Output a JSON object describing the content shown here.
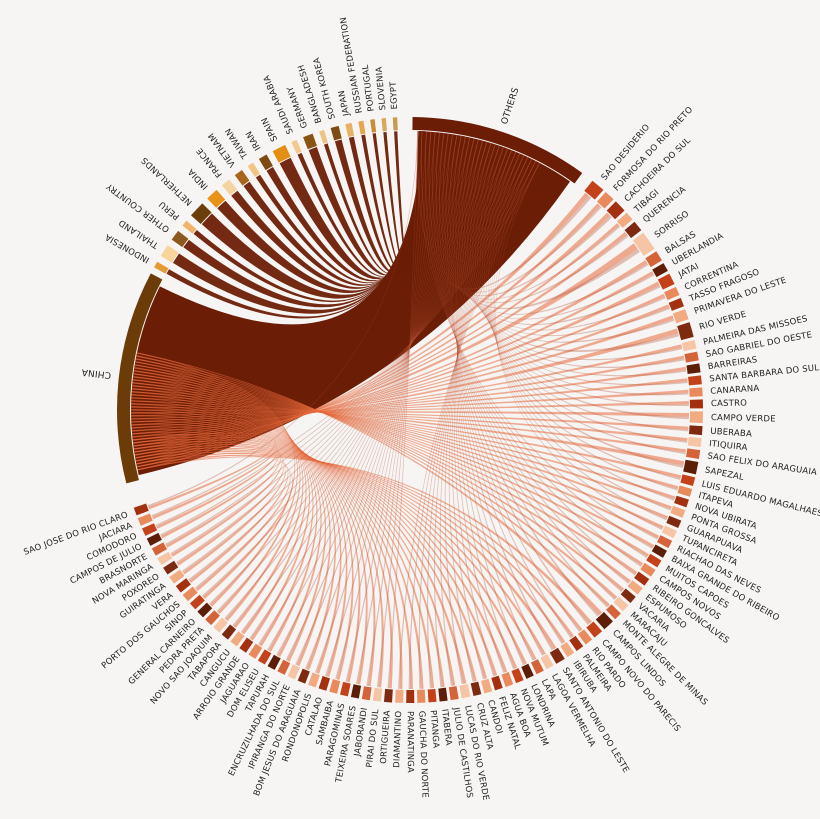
{
  "chart_data": {
    "type": "chord",
    "title": "",
    "countries": [
      {
        "name": "EGYPT",
        "weight": 0.7,
        "color": "#c89a52"
      },
      {
        "name": "SLOVENIA",
        "weight": 0.7,
        "color": "#d9a85f"
      },
      {
        "name": "PORTUGAL",
        "weight": 0.7,
        "color": "#c78c37"
      },
      {
        "name": "RUSSIAN FEDERATION",
        "weight": 0.8,
        "color": "#e7a54c"
      },
      {
        "name": "JAPAN",
        "weight": 1.0,
        "color": "#e8b062"
      },
      {
        "name": "SOUTH KOREA",
        "weight": 1.3,
        "color": "#7e4c12"
      },
      {
        "name": "BANGLADESH",
        "weight": 0.8,
        "color": "#f0c283"
      },
      {
        "name": "GERMANY",
        "weight": 1.6,
        "color": "#8a5314"
      },
      {
        "name": "SAUDI ARABIA",
        "weight": 0.9,
        "color": "#f4c98e"
      },
      {
        "name": "SPAIN",
        "weight": 2.2,
        "color": "#e58e14"
      },
      {
        "name": "IRAN",
        "weight": 1.4,
        "color": "#7d4a10"
      },
      {
        "name": "TAIWAN",
        "weight": 1.0,
        "color": "#f2c585"
      },
      {
        "name": "VIETNAM",
        "weight": 1.4,
        "color": "#a9661a"
      },
      {
        "name": "FRANCE",
        "weight": 1.5,
        "color": "#f6d4a2"
      },
      {
        "name": "INDIA",
        "weight": 2.0,
        "color": "#e89217"
      },
      {
        "name": "NETHERLANDS",
        "weight": 2.6,
        "color": "#6b3e0a"
      },
      {
        "name": "PERU",
        "weight": 1.0,
        "color": "#f0b56a"
      },
      {
        "name": "OTHER COUNTRY",
        "weight": 1.7,
        "color": "#8c5a1d"
      },
      {
        "name": "THAILAND",
        "weight": 2.0,
        "color": "#f8d39a"
      },
      {
        "name": "INDONESIA",
        "weight": 1.0,
        "color": "#e59a34"
      },
      {
        "name": "CHINA",
        "weight": 34.0,
        "color": "#6b3c08"
      }
    ],
    "others": {
      "name": "OTHERS",
      "weight": 47.0,
      "color": "#6b1d05"
    },
    "municipalities": [
      {
        "name": "SAO DESIDERIO",
        "weight": 1.6
      },
      {
        "name": "FORMOSA DO RIO PRETO",
        "weight": 1.2
      },
      {
        "name": "CACHOEIRA DO SUL",
        "weight": 1.4
      },
      {
        "name": "TIBAGI",
        "weight": 1.0
      },
      {
        "name": "QUERENCIA",
        "weight": 1.2
      },
      {
        "name": "SORRISO",
        "weight": 2.2
      },
      {
        "name": "BALSAS",
        "weight": 1.2
      },
      {
        "name": "UBERLANDIA",
        "weight": 1.0
      },
      {
        "name": "JATAI",
        "weight": 1.3
      },
      {
        "name": "CORRENTINA",
        "weight": 1.0
      },
      {
        "name": "TASSO FRAGOSO",
        "weight": 1.0
      },
      {
        "name": "PRIMAVERA DO LESTE",
        "weight": 1.2
      },
      {
        "name": "RIO VERDE",
        "weight": 1.7
      },
      {
        "name": "PALMEIRA DAS MISSOES",
        "weight": 1.0
      },
      {
        "name": "SAO GABRIEL DO OESTE",
        "weight": 1.0
      },
      {
        "name": "BARREIRAS",
        "weight": 1.0
      },
      {
        "name": "SANTA BARBARA DO SUL",
        "weight": 1.0
      },
      {
        "name": "CANARANA",
        "weight": 1.0
      },
      {
        "name": "CASTRO",
        "weight": 1.0
      },
      {
        "name": "CAMPO VERDE",
        "weight": 1.3
      },
      {
        "name": "UBERABA",
        "weight": 1.0
      },
      {
        "name": "ITIQUIRA",
        "weight": 1.0
      },
      {
        "name": "SAO FELIX DO ARAGUAIA",
        "weight": 1.0
      },
      {
        "name": "SAPEZAL",
        "weight": 1.4
      },
      {
        "name": "LUIS EDUARDO MAGALHAES",
        "weight": 1.0
      },
      {
        "name": "ITAPEVA",
        "weight": 0.9
      },
      {
        "name": "NOVA UBIRATA",
        "weight": 0.9
      },
      {
        "name": "PONTA GROSSA",
        "weight": 0.9
      },
      {
        "name": "GUARAPUAVA",
        "weight": 0.9
      },
      {
        "name": "TUPANCIRETA",
        "weight": 0.9
      },
      {
        "name": "RIACHAO DAS NEVES",
        "weight": 0.9
      },
      {
        "name": "BAIXA GRANDE DO RIBEIRO",
        "weight": 0.9
      },
      {
        "name": "MUITOS CAPOES",
        "weight": 0.9
      },
      {
        "name": "CAMPOS NOVOS",
        "weight": 0.9
      },
      {
        "name": "RIBEIRO GONCALVES",
        "weight": 0.9
      },
      {
        "name": "ESPUMOSO",
        "weight": 0.9
      },
      {
        "name": "VACARIA",
        "weight": 0.9
      },
      {
        "name": "MARACAJU",
        "weight": 0.9
      },
      {
        "name": "MONTE ALEGRE DE MINAS",
        "weight": 0.9
      },
      {
        "name": "CAMPOS LINDOS",
        "weight": 1.3
      },
      {
        "name": "CAMPO NOVO DO PARECIS",
        "weight": 1.1
      },
      {
        "name": "RIO PARDO",
        "weight": 0.9
      },
      {
        "name": "PALMEIRA",
        "weight": 0.9
      },
      {
        "name": "IBIRUBA",
        "weight": 0.9
      },
      {
        "name": "SANTO ANTONIO DO LESTE",
        "weight": 1.1
      },
      {
        "name": "LAGOA VERMELHA",
        "weight": 0.9
      },
      {
        "name": "LAPA",
        "weight": 0.9
      },
      {
        "name": "LONDRINA",
        "weight": 0.9
      },
      {
        "name": "NOVA MUTUM",
        "weight": 0.9
      },
      {
        "name": "AGUA BOA",
        "weight": 0.9
      },
      {
        "name": "FELIZ NATAL",
        "weight": 0.9
      },
      {
        "name": "CANDOI",
        "weight": 0.9
      },
      {
        "name": "CRUZ ALTA",
        "weight": 0.9
      },
      {
        "name": "LUCAS DO RIO VERDE",
        "weight": 1.0
      },
      {
        "name": "JULIO DE CASTILHOS",
        "weight": 0.9
      },
      {
        "name": "ITABERA",
        "weight": 0.9
      },
      {
        "name": "PITANGA",
        "weight": 0.9
      },
      {
        "name": "GAUCHA DO NORTE",
        "weight": 0.9
      },
      {
        "name": "PARANATINGA",
        "weight": 0.9
      },
      {
        "name": "DIAMANTINO",
        "weight": 0.9
      },
      {
        "name": "ORTIGUEIRA",
        "weight": 0.9
      },
      {
        "name": "PIRAI DO SUL",
        "weight": 0.9
      },
      {
        "name": "JABORANDI",
        "weight": 0.9
      },
      {
        "name": "TEIXEIRA SOARES",
        "weight": 0.9
      },
      {
        "name": "PARAGOMINAS",
        "weight": 0.9
      },
      {
        "name": "SAMBAIBA",
        "weight": 0.9
      },
      {
        "name": "CATALAO",
        "weight": 0.9
      },
      {
        "name": "RONDONOPOLIS",
        "weight": 0.9
      },
      {
        "name": "BOM JESUS DO ARAGUAIA",
        "weight": 0.9
      },
      {
        "name": "IPIRANGA DO NORTE",
        "weight": 0.9
      },
      {
        "name": "ENCRUZILHADA DO SUL",
        "weight": 0.9
      },
      {
        "name": "TAPURAH",
        "weight": 0.9
      },
      {
        "name": "DOM ELISEU",
        "weight": 0.9
      },
      {
        "name": "JAGUARAO",
        "weight": 0.9
      },
      {
        "name": "ARROIO GRANDE",
        "weight": 0.9
      },
      {
        "name": "CANGUCU",
        "weight": 0.9
      },
      {
        "name": "TABAPORA",
        "weight": 0.9
      },
      {
        "name": "NOVO SAO JOAQUIM",
        "weight": 0.9
      },
      {
        "name": "PEDRA PRETA",
        "weight": 0.9
      },
      {
        "name": "GENERAL CARNEIRO",
        "weight": 0.9
      },
      {
        "name": "SINOP",
        "weight": 0.9
      },
      {
        "name": "PORTO DOS GAUCHOS",
        "weight": 0.9
      },
      {
        "name": "VERA",
        "weight": 0.9
      },
      {
        "name": "GUIRATINGA",
        "weight": 0.9
      },
      {
        "name": "POXOREO",
        "weight": 0.9
      },
      {
        "name": "NOVA MARINGA",
        "weight": 0.9
      },
      {
        "name": "BRASNORTE",
        "weight": 0.9
      },
      {
        "name": "CAMPOS DE JULIO",
        "weight": 0.9
      },
      {
        "name": "COMODORO",
        "weight": 0.9
      },
      {
        "name": "JACIARA",
        "weight": 0.9
      },
      {
        "name": "SAO JOSE DO RIO CLARO",
        "weight": 0.9
      }
    ]
  }
}
